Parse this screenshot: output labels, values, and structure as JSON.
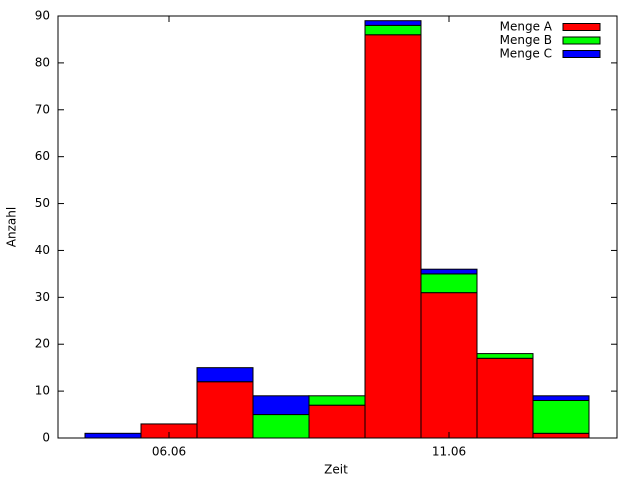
{
  "chart_data": {
    "type": "stacked_bar",
    "xlabel": "Zeit",
    "ylabel": "Anzahl",
    "categories": [
      null,
      "06.06",
      null,
      null,
      null,
      null,
      "11.06",
      null,
      null
    ],
    "series": [
      {
        "name": "Menge A",
        "color": "#ff0000",
        "values": [
          0,
          3,
          12,
          0,
          7,
          86,
          31,
          17,
          1
        ]
      },
      {
        "name": "Menge B",
        "color": "#00ff00",
        "values": [
          0,
          0,
          0,
          5,
          2,
          2,
          4,
          1,
          7
        ]
      },
      {
        "name": "Menge C",
        "color": "#0000ff",
        "values": [
          1,
          0,
          3,
          4,
          0,
          1,
          1,
          0,
          1
        ]
      }
    ],
    "ylim": [
      0,
      90
    ],
    "yticks": [
      0,
      10,
      20,
      30,
      40,
      50,
      60,
      70,
      80,
      90
    ],
    "legend": "top-right"
  }
}
